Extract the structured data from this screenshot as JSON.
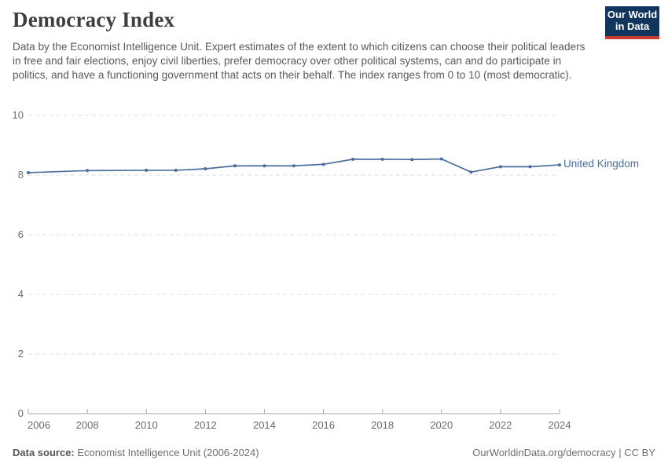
{
  "header": {
    "title": "Democracy Index",
    "subtitle": "Data by the Economist Intelligence Unit. Expert estimates of the extent to which citizens can choose their political leaders in free and fair elections, enjoy civil liberties, prefer democracy over other political systems, can and do participate in politics, and have a functioning government that acts on their behalf. The index ranges from 0 to 10 (most democratic).",
    "logo": {
      "line1": "Our World",
      "line2": "in Data",
      "bg_color": "#12355e",
      "bar_color": "#cb3a2f"
    }
  },
  "chart_data": {
    "type": "line",
    "title": "Democracy Index",
    "xlabel": "",
    "ylabel": "",
    "xlim": [
      2006,
      2024
    ],
    "ylim": [
      0,
      10
    ],
    "x_ticks": [
      2006,
      2008,
      2010,
      2012,
      2014,
      2016,
      2018,
      2020,
      2022,
      2024
    ],
    "y_ticks": [
      0,
      2,
      4,
      6,
      8,
      10
    ],
    "grid": "horizontal-dashed",
    "legend_position": "end-of-line-label",
    "series": [
      {
        "name": "United Kingdom",
        "color": "#4a6d9e",
        "x": [
          2006,
          2008,
          2010,
          2011,
          2012,
          2013,
          2014,
          2015,
          2016,
          2017,
          2018,
          2019,
          2020,
          2021,
          2022,
          2023,
          2024
        ],
        "values": [
          8.08,
          8.15,
          8.16,
          8.16,
          8.21,
          8.31,
          8.31,
          8.31,
          8.36,
          8.53,
          8.53,
          8.52,
          8.54,
          8.1,
          8.28,
          8.28,
          8.34
        ]
      }
    ]
  },
  "colors": {
    "title_text": "#3e3e3e",
    "subtitle_text": "#5a5a5a",
    "tick_text": "#6b6b6b",
    "gridline": "#dcdcdc",
    "axis_line": "#a8a8a8",
    "series_blue": "#4a6d9e"
  },
  "footer": {
    "source_label": "Data source:",
    "source_value": " Economist Intelligence Unit (2006-2024)",
    "credit": "OurWorldinData.org/democracy | CC BY"
  }
}
